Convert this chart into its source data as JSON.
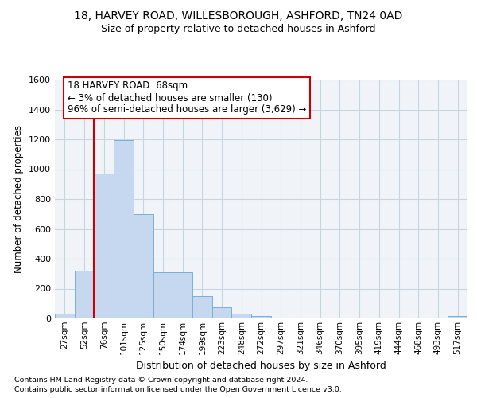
{
  "title1": "18, HARVEY ROAD, WILLESBOROUGH, ASHFORD, TN24 0AD",
  "title2": "Size of property relative to detached houses in Ashford",
  "xlabel": "Distribution of detached houses by size in Ashford",
  "ylabel": "Number of detached properties",
  "categories": [
    "27sqm",
    "52sqm",
    "76sqm",
    "101sqm",
    "125sqm",
    "150sqm",
    "174sqm",
    "199sqm",
    "223sqm",
    "248sqm",
    "272sqm",
    "297sqm",
    "321sqm",
    "346sqm",
    "370sqm",
    "395sqm",
    "419sqm",
    "444sqm",
    "468sqm",
    "493sqm",
    "517sqm"
  ],
  "values": [
    30,
    320,
    970,
    1195,
    700,
    310,
    310,
    150,
    75,
    30,
    18,
    5,
    0,
    5,
    0,
    0,
    0,
    0,
    0,
    0,
    15
  ],
  "bar_color": "#c5d8f0",
  "bar_edge_color": "#7aafd4",
  "annotation_title": "18 HARVEY ROAD: 68sqm",
  "annotation_line1": "← 3% of detached houses are smaller (130)",
  "annotation_line2": "96% of semi-detached houses are larger (3,629) →",
  "annotation_box_color": "#ffffff",
  "annotation_box_edge_color": "#cc0000",
  "vline_color": "#cc0000",
  "ylim": [
    0,
    1600
  ],
  "yticks": [
    0,
    200,
    400,
    600,
    800,
    1000,
    1200,
    1400,
    1600
  ],
  "grid_color": "#c8d4e0",
  "background_color": "#f0f4f8",
  "footer1": "Contains HM Land Registry data © Crown copyright and database right 2024.",
  "footer2": "Contains public sector information licensed under the Open Government Licence v3.0."
}
